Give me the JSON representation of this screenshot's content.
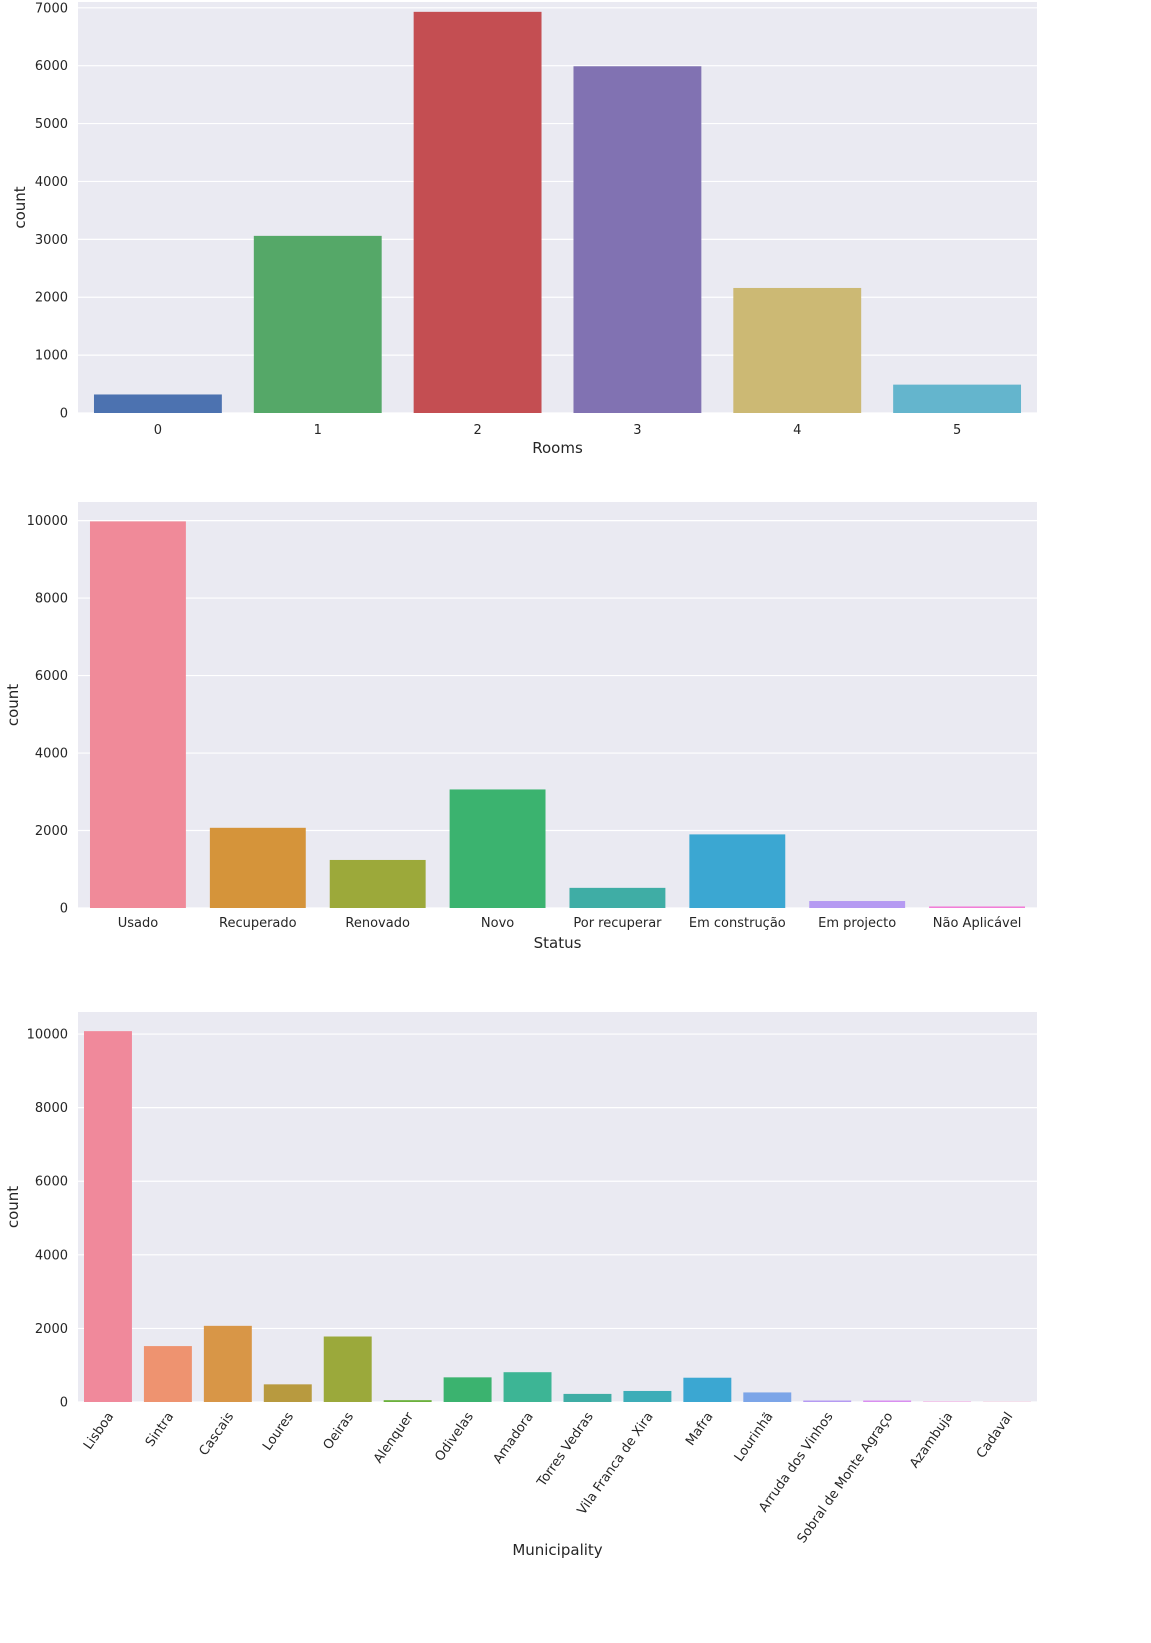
{
  "chart_data": [
    {
      "type": "bar",
      "xlabel": "Rooms",
      "ylabel": "count",
      "categories": [
        "0",
        "1",
        "2",
        "3",
        "4",
        "5"
      ],
      "values": [
        320,
        3060,
        6930,
        5990,
        2160,
        490
      ],
      "ylim": [
        0,
        7100
      ],
      "yticks": [
        0,
        1000,
        2000,
        3000,
        4000,
        5000,
        6000,
        7000
      ],
      "colors": [
        "#4c72b0",
        "#55a868",
        "#c44e52",
        "#8172b2",
        "#ccb974",
        "#64b5cd"
      ],
      "grid": true,
      "background": "#eaeaf2"
    },
    {
      "type": "bar",
      "xlabel": "Status",
      "ylabel": "count",
      "categories": [
        "Usado",
        "Recuperado",
        "Renovado",
        "Novo",
        "Por recuperar",
        "Em construção",
        "Em projecto",
        "Não Aplicável"
      ],
      "values": [
        9980,
        2070,
        1240,
        3060,
        520,
        1900,
        180,
        40
      ],
      "ylim": [
        0,
        10480
      ],
      "yticks": [
        0,
        2000,
        4000,
        6000,
        8000,
        10000
      ],
      "colors": [
        "#f08a99",
        "#d5943a",
        "#9ca93a",
        "#3bb36f",
        "#3fada5",
        "#3ba7d2",
        "#b59af2",
        "#f27ed7"
      ],
      "grid": true,
      "background": "#eaeaf2"
    },
    {
      "type": "bar",
      "xlabel": "Municipality",
      "ylabel": "count",
      "categories": [
        "Lisboa",
        "Sintra",
        "Cascais",
        "Loures",
        "Oeiras",
        "Alenquer",
        "Odivelas",
        "Amadora",
        "Torres Vedras",
        "Vila Franca de Xira",
        "Mafra",
        "Lourinhã",
        "Arruda dos Vinhos",
        "Sobral de Monte Agraço",
        "Azambuja",
        "Cadaval"
      ],
      "values": [
        10080,
        1520,
        2070,
        480,
        1780,
        50,
        670,
        810,
        220,
        300,
        660,
        260,
        40,
        40,
        10,
        5
      ],
      "ylim": [
        0,
        10600
      ],
      "yticks": [
        0,
        2000,
        4000,
        6000,
        8000,
        10000
      ],
      "colors": [
        "#f0899b",
        "#ee9370",
        "#d89647",
        "#b89a3f",
        "#9ba93b",
        "#6cb13c",
        "#3bb36f",
        "#3db595",
        "#3fada5",
        "#3dadb8",
        "#3ba7d2",
        "#7ca5e8",
        "#b59af2",
        "#d98ef0",
        "#f27ed7",
        "#f183b6"
      ],
      "grid": true,
      "background": "#eaeaf2"
    }
  ]
}
